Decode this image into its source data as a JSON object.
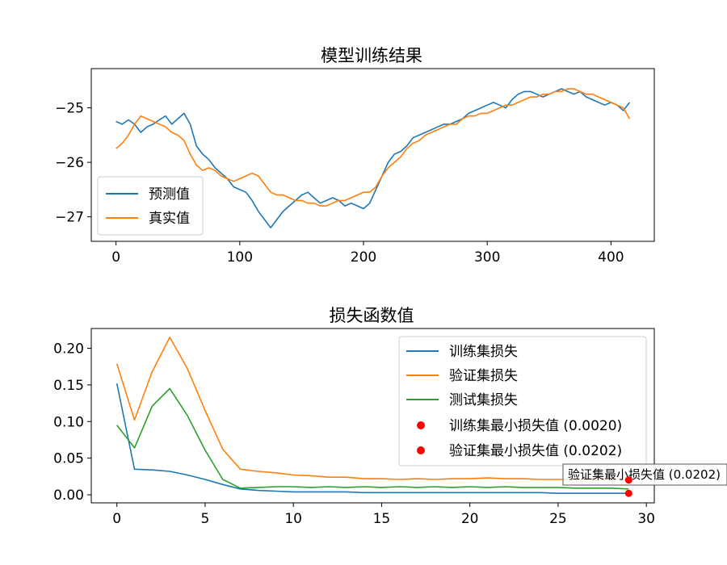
{
  "chart_data": [
    {
      "type": "line",
      "title": "模型训练结果",
      "xlabel": "",
      "ylabel": "",
      "xlim": [
        -20,
        435
      ],
      "ylim": [
        -27.45,
        -24.28
      ],
      "xticks": [
        0,
        100,
        200,
        300,
        400
      ],
      "yticks": [
        -27,
        -26,
        -25
      ],
      "x_tick_labels": [
        "0",
        "100",
        "200",
        "300",
        "400"
      ],
      "y_tick_labels": [
        "−27",
        "−26",
        "−25"
      ],
      "legend_position": "lower-left",
      "grid": false,
      "series": [
        {
          "name": "预测值",
          "color": "#1f77b4",
          "x": [
            0,
            5,
            10,
            15,
            20,
            25,
            30,
            35,
            40,
            45,
            50,
            55,
            60,
            65,
            70,
            75,
            80,
            85,
            90,
            95,
            100,
            105,
            110,
            115,
            120,
            125,
            130,
            135,
            140,
            145,
            150,
            155,
            160,
            165,
            170,
            175,
            180,
            185,
            190,
            195,
            200,
            205,
            210,
            215,
            220,
            225,
            230,
            235,
            240,
            245,
            250,
            255,
            260,
            265,
            270,
            275,
            280,
            285,
            290,
            295,
            300,
            305,
            310,
            315,
            320,
            325,
            330,
            335,
            340,
            345,
            350,
            355,
            360,
            365,
            370,
            375,
            380,
            385,
            390,
            395,
            400,
            405,
            410,
            415
          ],
          "values": [
            -25.25,
            -25.3,
            -25.22,
            -25.3,
            -25.45,
            -25.35,
            -25.3,
            -25.22,
            -25.15,
            -25.3,
            -25.2,
            -25.1,
            -25.3,
            -25.7,
            -25.85,
            -25.95,
            -26.1,
            -26.2,
            -26.3,
            -26.45,
            -26.5,
            -26.55,
            -26.7,
            -26.9,
            -27.05,
            -27.2,
            -27.05,
            -26.9,
            -26.8,
            -26.7,
            -26.6,
            -26.55,
            -26.65,
            -26.75,
            -26.7,
            -26.65,
            -26.7,
            -26.8,
            -26.75,
            -26.8,
            -26.85,
            -26.75,
            -26.5,
            -26.25,
            -26.0,
            -25.85,
            -25.8,
            -25.7,
            -25.55,
            -25.5,
            -25.45,
            -25.4,
            -25.35,
            -25.3,
            -25.3,
            -25.25,
            -25.2,
            -25.1,
            -25.05,
            -25.0,
            -24.95,
            -24.9,
            -24.95,
            -25.0,
            -24.85,
            -24.75,
            -24.7,
            -24.7,
            -24.75,
            -24.8,
            -24.75,
            -24.7,
            -24.65,
            -24.7,
            -24.75,
            -24.7,
            -24.8,
            -24.85,
            -24.9,
            -24.95,
            -24.9,
            -24.95,
            -25.05,
            -24.9
          ]
        },
        {
          "name": "真实值",
          "color": "#ff7f0e",
          "x": [
            0,
            5,
            10,
            15,
            20,
            25,
            30,
            35,
            40,
            45,
            50,
            55,
            60,
            65,
            70,
            75,
            80,
            85,
            90,
            95,
            100,
            105,
            110,
            115,
            120,
            125,
            130,
            135,
            140,
            145,
            150,
            155,
            160,
            165,
            170,
            175,
            180,
            185,
            190,
            195,
            200,
            205,
            210,
            215,
            220,
            225,
            230,
            235,
            240,
            245,
            250,
            255,
            260,
            265,
            270,
            275,
            280,
            285,
            290,
            295,
            300,
            305,
            310,
            315,
            320,
            325,
            330,
            335,
            340,
            345,
            350,
            355,
            360,
            365,
            370,
            375,
            380,
            385,
            390,
            395,
            400,
            405,
            410,
            415
          ],
          "values": [
            -25.75,
            -25.65,
            -25.5,
            -25.3,
            -25.15,
            -25.2,
            -25.25,
            -25.3,
            -25.35,
            -25.45,
            -25.5,
            -25.6,
            -25.85,
            -26.05,
            -26.15,
            -26.1,
            -26.15,
            -26.25,
            -26.3,
            -26.35,
            -26.3,
            -26.25,
            -26.2,
            -26.25,
            -26.4,
            -26.55,
            -26.6,
            -26.6,
            -26.65,
            -26.7,
            -26.7,
            -26.75,
            -26.75,
            -26.8,
            -26.8,
            -26.75,
            -26.7,
            -26.7,
            -26.65,
            -26.6,
            -26.55,
            -26.55,
            -26.45,
            -26.25,
            -26.1,
            -26.0,
            -25.9,
            -25.75,
            -25.65,
            -25.6,
            -25.5,
            -25.45,
            -25.4,
            -25.35,
            -25.3,
            -25.3,
            -25.2,
            -25.15,
            -25.15,
            -25.1,
            -25.1,
            -25.05,
            -25.0,
            -24.95,
            -24.95,
            -24.9,
            -24.85,
            -24.8,
            -24.8,
            -24.75,
            -24.75,
            -24.7,
            -24.7,
            -24.65,
            -24.65,
            -24.7,
            -24.75,
            -24.75,
            -24.8,
            -24.85,
            -24.9,
            -24.95,
            -25.0,
            -25.2
          ]
        }
      ]
    },
    {
      "type": "line",
      "title": "损失函数值",
      "xlabel": "",
      "ylabel": "",
      "xlim": [
        -1.45,
        30.45
      ],
      "ylim": [
        -0.011,
        0.227
      ],
      "xticks": [
        0,
        5,
        10,
        15,
        20,
        25,
        30
      ],
      "yticks": [
        0.0,
        0.05,
        0.1,
        0.15,
        0.2
      ],
      "x_tick_labels": [
        "0",
        "5",
        "10",
        "15",
        "20",
        "25",
        "30"
      ],
      "y_tick_labels": [
        "0.00",
        "0.05",
        "0.10",
        "0.15",
        "0.20"
      ],
      "legend_position": "upper-right",
      "grid": false,
      "categories": [
        0,
        1,
        2,
        3,
        4,
        5,
        6,
        7,
        8,
        9,
        10,
        11,
        12,
        13,
        14,
        15,
        16,
        17,
        18,
        19,
        20,
        21,
        22,
        23,
        24,
        25,
        26,
        27,
        28,
        29
      ],
      "series": [
        {
          "name": "训练集损失",
          "color": "#1f77b4",
          "values": [
            0.152,
            0.035,
            0.034,
            0.032,
            0.027,
            0.021,
            0.014,
            0.008,
            0.006,
            0.005,
            0.004,
            0.004,
            0.004,
            0.004,
            0.003,
            0.003,
            0.003,
            0.003,
            0.003,
            0.003,
            0.003,
            0.003,
            0.003,
            0.003,
            0.003,
            0.002,
            0.002,
            0.002,
            0.002,
            0.002
          ]
        },
        {
          "name": "验证集损失",
          "color": "#ff7f0e",
          "values": [
            0.179,
            0.102,
            0.168,
            0.215,
            0.172,
            0.115,
            0.062,
            0.035,
            0.032,
            0.03,
            0.027,
            0.026,
            0.024,
            0.024,
            0.022,
            0.022,
            0.021,
            0.022,
            0.021,
            0.022,
            0.022,
            0.023,
            0.022,
            0.022,
            0.021,
            0.021,
            0.021,
            0.02,
            0.021,
            0.0202
          ]
        },
        {
          "name": "测试集损失",
          "color": "#2ca02c",
          "values": [
            0.095,
            0.064,
            0.121,
            0.145,
            0.108,
            0.061,
            0.021,
            0.009,
            0.01,
            0.011,
            0.011,
            0.01,
            0.011,
            0.01,
            0.011,
            0.01,
            0.011,
            0.01,
            0.011,
            0.01,
            0.011,
            0.01,
            0.011,
            0.01,
            0.01,
            0.01,
            0.009,
            0.009,
            0.009,
            0.008
          ]
        }
      ],
      "markers": [
        {
          "name": "训练集最小损失值 (0.0020)",
          "x": 29,
          "y": 0.002,
          "color": "#ff0000"
        },
        {
          "name": "验证集最小损失值 (0.0202)",
          "x": 29,
          "y": 0.0202,
          "color": "#ff0000"
        }
      ],
      "annotation": {
        "text": "验证集最小损失值 (0.0202)",
        "x": 29,
        "y": 0.0202
      }
    }
  ]
}
